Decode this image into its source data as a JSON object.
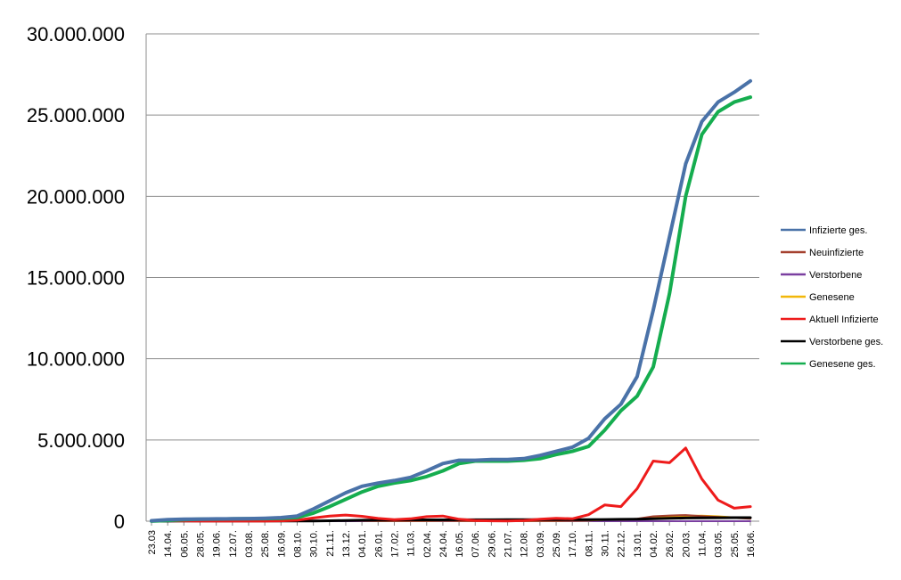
{
  "chart_data": {
    "type": "line",
    "title": "",
    "xlabel": "",
    "ylabel": "",
    "ylim": [
      0,
      30000000
    ],
    "y_ticks": [
      {
        "value": 0,
        "label": "0"
      },
      {
        "value": 5000000,
        "label": "5.000.000"
      },
      {
        "value": 10000000,
        "label": "10.000.000"
      },
      {
        "value": 15000000,
        "label": "15.000.000"
      },
      {
        "value": 20000000,
        "label": "20.000.000"
      },
      {
        "value": 25000000,
        "label": "25.000.000"
      },
      {
        "value": 30000000,
        "label": "30.000.000"
      }
    ],
    "grid": true,
    "legend_position": "right",
    "x": [
      "23.03",
      "14.04.",
      "06.05.",
      "28.05.",
      "19.06.",
      "12.07.",
      "03.08.",
      "25.08.",
      "16.09.",
      "08.10.",
      "30.10.",
      "21.11.",
      "13.12.",
      "04.01.",
      "26.01.",
      "17.02.",
      "11.03.",
      "02.04.",
      "24.04.",
      "16.05.",
      "07.06.",
      "29.06.",
      "21.07.",
      "12.08.",
      "03.09.",
      "25.09.",
      "17.10.",
      "08.11.",
      "30.11.",
      "22.12.",
      "13.01.",
      "04.02.",
      "26.02.",
      "20.03.",
      "11.04.",
      "03.05.",
      "25.05.",
      "16.06."
    ],
    "series": [
      {
        "name": "Infizierte ges.",
        "color": "#4a72a8",
        "width": 4,
        "values": [
          30000,
          100000,
          120000,
          130000,
          140000,
          150000,
          160000,
          180000,
          220000,
          320000,
          750000,
          1250000,
          1750000,
          2150000,
          2350000,
          2500000,
          2700000,
          3100000,
          3550000,
          3750000,
          3750000,
          3800000,
          3800000,
          3850000,
          4050000,
          4300000,
          4550000,
          5100000,
          6300000,
          7200000,
          8900000,
          13000000,
          17500000,
          22000000,
          24600000,
          25800000,
          26400000,
          27100000
        ]
      },
      {
        "name": "Neuinfizierte",
        "color": "#a5412f",
        "width": 2,
        "values": [
          5000,
          3000,
          2000,
          1000,
          1000,
          1000,
          1000,
          1000,
          2000,
          8000,
          25000,
          30000,
          25000,
          20000,
          15000,
          10000,
          12000,
          20000,
          25000,
          15000,
          8000,
          5000,
          4000,
          8000,
          15000,
          20000,
          25000,
          60000,
          100000,
          90000,
          150000,
          300000,
          350000,
          380000,
          320000,
          260000,
          200000,
          150000
        ]
      },
      {
        "name": "Verstorbene",
        "color": "#7a3fa0",
        "width": 2,
        "values": [
          200,
          200,
          100,
          100,
          50,
          50,
          50,
          50,
          50,
          80,
          300,
          400,
          500,
          500,
          400,
          300,
          200,
          200,
          200,
          150,
          100,
          80,
          50,
          50,
          80,
          100,
          150,
          200,
          300,
          400,
          500,
          600,
          700,
          650,
          550,
          450,
          350,
          300
        ]
      },
      {
        "name": "Genesene",
        "color": "#f2b70a",
        "width": 2,
        "values": [
          3000,
          5000,
          3000,
          2000,
          1500,
          1000,
          1000,
          1000,
          1500,
          5000,
          15000,
          25000,
          30000,
          25000,
          18000,
          12000,
          12000,
          15000,
          20000,
          18000,
          10000,
          6000,
          4000,
          6000,
          12000,
          18000,
          22000,
          40000,
          80000,
          95000,
          120000,
          200000,
          280000,
          330000,
          340000,
          300000,
          230000,
          180000
        ]
      },
      {
        "name": "Aktuell Infizierte",
        "color": "#ee1b1b",
        "width": 3,
        "values": [
          20000,
          30000,
          10000,
          5000,
          4000,
          4000,
          5000,
          8000,
          20000,
          60000,
          200000,
          320000,
          380000,
          300000,
          170000,
          100000,
          150000,
          280000,
          320000,
          120000,
          40000,
          20000,
          15000,
          40000,
          120000,
          180000,
          150000,
          400000,
          1000000,
          900000,
          2000000,
          3700000,
          3600000,
          4500000,
          2600000,
          1300000,
          800000,
          900000
        ]
      },
      {
        "name": "Verstorbene ges.",
        "color": "#000000",
        "width": 3,
        "values": [
          1000,
          5000,
          9000,
          10000,
          11000,
          11000,
          11000,
          11000,
          11000,
          12000,
          15000,
          25000,
          45000,
          60000,
          72000,
          78000,
          80000,
          82000,
          85000,
          88000,
          89000,
          90000,
          91000,
          92000,
          93000,
          94000,
          95000,
          100000,
          105000,
          115000,
          125000,
          150000,
          175000,
          195000,
          210000,
          215000,
          220000,
          222000
        ]
      },
      {
        "name": "Genesene ges.",
        "color": "#15ad4f",
        "width": 4,
        "values": [
          5000,
          50000,
          100000,
          120000,
          130000,
          140000,
          150000,
          160000,
          180000,
          230000,
          500000,
          900000,
          1350000,
          1800000,
          2150000,
          2350000,
          2500000,
          2750000,
          3100000,
          3550000,
          3700000,
          3700000,
          3700000,
          3750000,
          3850000,
          4100000,
          4300000,
          4600000,
          5600000,
          6800000,
          7700000,
          9500000,
          14000000,
          20000000,
          23800000,
          25200000,
          25800000,
          26100000
        ]
      }
    ]
  }
}
